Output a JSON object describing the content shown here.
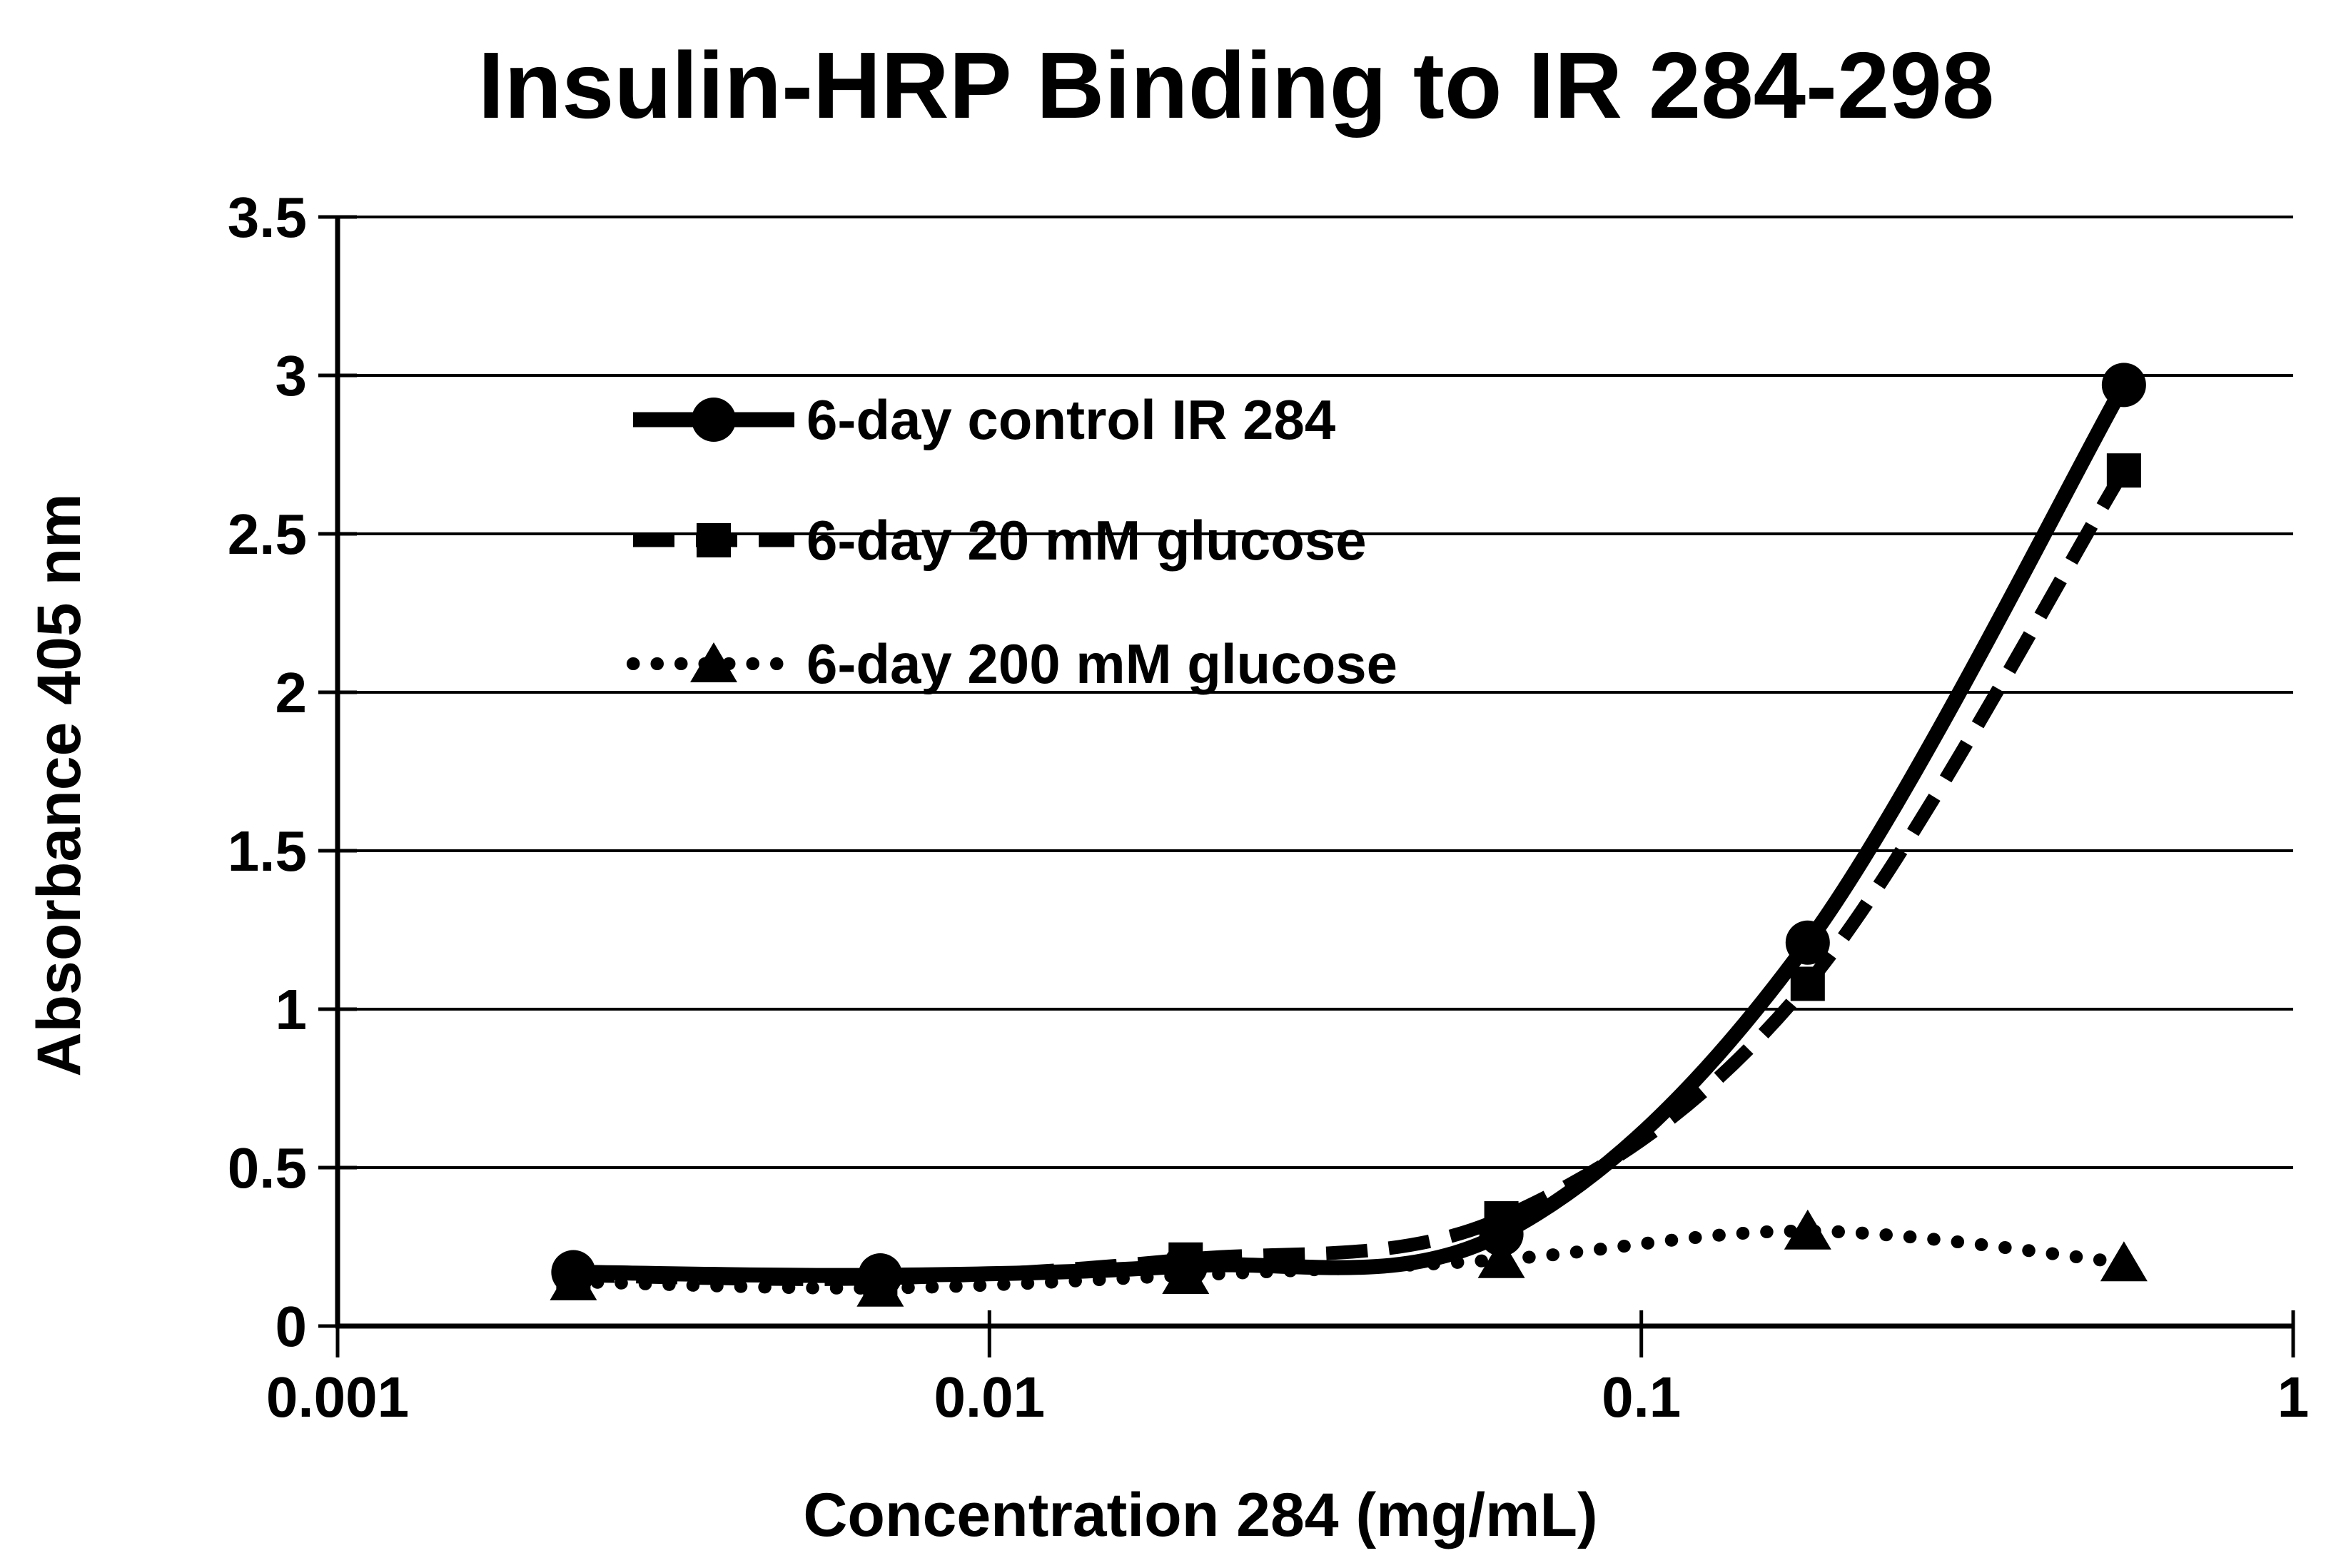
{
  "title": "Insulin-HRP Binding to IR 284-298",
  "chart_data": {
    "type": "line",
    "title": "Insulin-HRP Binding to IR 284-298",
    "xlabel": "Concentration 284 (mg/mL)",
    "ylabel": "Absorbance 405 nm",
    "x_scale": "log",
    "xlim": [
      0.001,
      1
    ],
    "ylim": [
      0,
      3.5
    ],
    "x_ticks": [
      0.001,
      0.01,
      0.1,
      1
    ],
    "x_tick_labels": [
      "0.001",
      "0.01",
      "0.1",
      "1"
    ],
    "y_ticks": [
      0,
      0.5,
      1,
      1.5,
      2,
      2.5,
      3,
      3.5
    ],
    "y_tick_labels": [
      "0",
      "0.5",
      "1",
      "1.5",
      "2",
      "2.5",
      "3",
      "3.5"
    ],
    "grid": "horizontal",
    "legend_position": "upper-left-inside",
    "ink_color": "#000000",
    "background": "#ffffff",
    "x": [
      0.0023,
      0.0068,
      0.02,
      0.061,
      0.18,
      0.55
    ],
    "series": [
      {
        "name": "6-day control IR 284",
        "line": "solid",
        "marker": "circle",
        "values": [
          0.17,
          0.16,
          0.19,
          0.29,
          1.21,
          2.97
        ]
      },
      {
        "name": "6-day 20 mM glucose",
        "line": "dashed",
        "marker": "square",
        "values": [
          0.16,
          0.15,
          0.21,
          0.34,
          1.08,
          2.7
        ]
      },
      {
        "name": "6-day 200 mM glucose",
        "line": "dotted",
        "marker": "triangle",
        "values": [
          0.14,
          0.12,
          0.16,
          0.21,
          0.3,
          0.2
        ]
      }
    ]
  }
}
